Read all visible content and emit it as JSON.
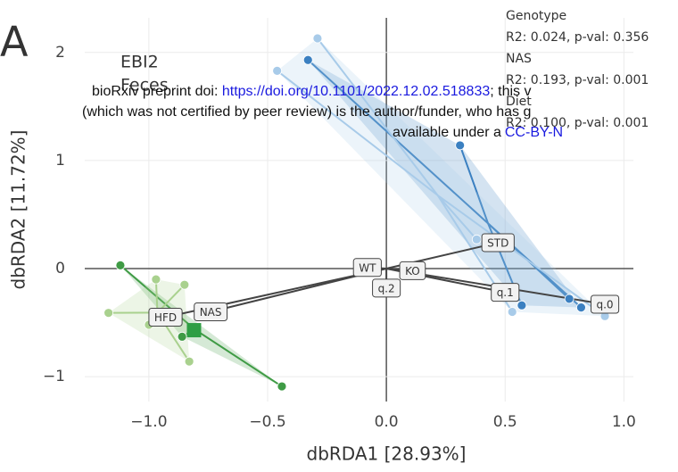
{
  "chart_data": {
    "type": "scatter",
    "panel": "A",
    "title": "EBI2",
    "subtitle": "Feces",
    "xlabel": "dbRDA1 [28.93%]",
    "ylabel": "dbRDA2 [11.72%]",
    "xlim": [
      -1.27,
      1.04
    ],
    "ylim": [
      -1.23,
      2.32
    ],
    "xticks": [
      {
        "value": -1,
        "label": "−1.0"
      },
      {
        "value": -0.5,
        "label": "−0.5"
      },
      {
        "value": 0,
        "label": "0.0"
      },
      {
        "value": 0.5,
        "label": "0.5"
      },
      {
        "value": 1,
        "label": "1.0"
      }
    ],
    "yticks": [
      {
        "value": -1,
        "label": "−1"
      },
      0,
      1,
      2
    ],
    "grid": true,
    "series": [
      {
        "color": "#3f9b45",
        "x": [
          -1.12,
          -0.44,
          -0.86
        ],
        "y": [
          0.03,
          -1.09,
          -0.63
        ]
      },
      {
        "color": "#a9d18e",
        "x": [
          -1.17,
          -0.97,
          -0.85,
          -0.83,
          -1.0
        ],
        "y": [
          -0.41,
          -0.1,
          -0.15,
          -0.86,
          -0.52
        ]
      },
      {
        "color": "#3b80c1",
        "x": [
          -0.33,
          0.31,
          0.57,
          0.77,
          0.82
        ],
        "y": [
          1.93,
          1.14,
          -0.34,
          -0.28,
          -0.36
        ]
      },
      {
        "color": "#a8cbe9",
        "x": [
          -0.46,
          -0.29,
          0.38,
          0.53,
          0.92
        ],
        "y": [
          1.83,
          2.13,
          0.27,
          -0.4,
          -0.44
        ]
      },
      {
        "color": "#2e9e44",
        "marker": "square",
        "x": [
          -0.81
        ],
        "y": [
          -0.57
        ]
      }
    ],
    "labels": [
      {
        "text": "WT",
        "x": -0.08,
        "y": 0.01
      },
      {
        "text": "KO",
        "x": 0.11,
        "y": -0.02
      },
      {
        "text": "q.2",
        "x": 0.0,
        "y": -0.18
      },
      {
        "text": "STD",
        "x": 0.47,
        "y": 0.24
      },
      {
        "text": "q.1",
        "x": 0.5,
        "y": -0.22
      },
      {
        "text": "q.0",
        "x": 0.92,
        "y": -0.33
      },
      {
        "text": "HFD",
        "x": -0.93,
        "y": -0.45
      },
      {
        "text": "NAS",
        "x": -0.74,
        "y": -0.4
      }
    ],
    "stats": [
      "Genotype",
      "R2: 0.024, p-val: 0.356",
      "NAS",
      "R2: 0.193, p-val: 0.001",
      "Diet",
      "R2: 0.100, p-val: 0.001"
    ],
    "watermark": {
      "line1_prefix": "bioRxiv preprint doi: ",
      "line1_url": "https://doi.org/10.1101/2022.12.02.518833",
      "line1_suffix": "; this v",
      "line2": "(which was not certified by peer review) is the author/funder, who has g",
      "line3_prefix": "available under a",
      "line3_link": "CC-BY-N"
    }
  }
}
